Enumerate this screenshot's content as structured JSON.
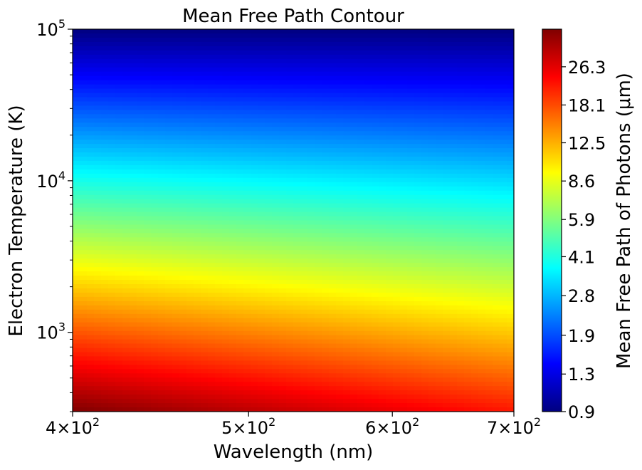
{
  "chart_data": {
    "type": "heatmap",
    "title": "Mean Free Path Contour",
    "xlabel": "Wavelength (nm)",
    "ylabel": "Electron Temperature (K)",
    "colorbar_label": "Mean Free Path of Photons (μm)",
    "x_scale": "log",
    "y_scale": "log",
    "xlim": [
      400,
      700
    ],
    "ylim": [
      300,
      100000
    ],
    "x_ticks": [
      {
        "value": 400,
        "mantissa": "4",
        "base": "10",
        "exp": "2"
      },
      {
        "value": 500,
        "mantissa": "5",
        "base": "10",
        "exp": "2"
      },
      {
        "value": 600,
        "mantissa": "6",
        "base": "10",
        "exp": "2"
      },
      {
        "value": 700,
        "mantissa": "7",
        "base": "10",
        "exp": "2"
      }
    ],
    "y_ticks": [
      {
        "value": 1000,
        "base": "10",
        "exp": "3"
      },
      {
        "value": 10000,
        "base": "10",
        "exp": "4"
      },
      {
        "value": 100000,
        "base": "10",
        "exp": "5"
      }
    ],
    "colorbar_ticks": [
      "0.9",
      "1.3",
      "1.9",
      "2.8",
      "4.1",
      "5.9",
      "8.6",
      "12.5",
      "18.1",
      "26.3"
    ],
    "colorbar_range": [
      0.9,
      38
    ],
    "colormap": "jet",
    "corner_values": [
      {
        "wavelength": 400,
        "temperature": 300,
        "mfp": 38
      },
      {
        "wavelength": 700,
        "temperature": 300,
        "mfp": 22
      },
      {
        "wavelength": 400,
        "temperature": 100000,
        "mfp": 0.9
      },
      {
        "wavelength": 700,
        "temperature": 100000,
        "mfp": 0.9
      }
    ],
    "grid": false
  }
}
